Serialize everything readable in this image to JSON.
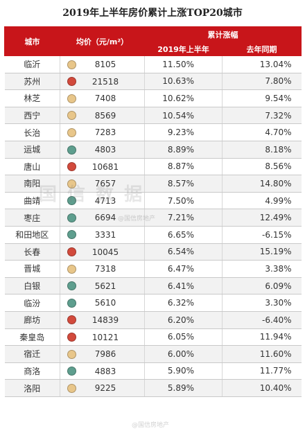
{
  "title": "2019年上半年房价累计上涨TOP20城市",
  "header": {
    "city": "城市",
    "price": "均价（元/m²）",
    "growth": "累计涨幅",
    "h1_2019": "2019年上半年",
    "last_year": "去年同期"
  },
  "watermark": "国 信 数 据",
  "watermark_small_1": "@国信房地产",
  "watermark_small_2": "@国信房地产",
  "colors": {
    "header": "#c8151a",
    "tan": "#e8c68a",
    "red": "#d24a3c",
    "teal": "#5e9e8e"
  },
  "rows": [
    {
      "city": "临沂",
      "color": "#e8c68a",
      "price": "8105",
      "h1": "11.50%",
      "last": "13.04%"
    },
    {
      "city": "苏州",
      "color": "#d24a3c",
      "price": "21518",
      "h1": "10.63%",
      "last": "7.80%"
    },
    {
      "city": "林芝",
      "color": "#e8c68a",
      "price": "7408",
      "h1": "10.62%",
      "last": "9.54%"
    },
    {
      "city": "西宁",
      "color": "#e8c68a",
      "price": "8569",
      "h1": "10.54%",
      "last": "7.32%"
    },
    {
      "city": "长治",
      "color": "#e8c68a",
      "price": "7283",
      "h1": "9.23%",
      "last": "4.70%"
    },
    {
      "city": "运城",
      "color": "#5e9e8e",
      "price": "4803",
      "h1": "8.89%",
      "last": "8.18%"
    },
    {
      "city": "唐山",
      "color": "#d24a3c",
      "price": "10681",
      "h1": "8.87%",
      "last": "8.56%"
    },
    {
      "city": "南阳",
      "color": "#e8c68a",
      "price": "7657",
      "h1": "8.57%",
      "last": "14.80%"
    },
    {
      "city": "曲靖",
      "color": "#5e9e8e",
      "price": "4713",
      "h1": "7.50%",
      "last": "4.99%"
    },
    {
      "city": "枣庄",
      "color": "#5e9e8e",
      "price": "6694",
      "h1": "7.21%",
      "last": "12.49%"
    },
    {
      "city": "和田地区",
      "color": "#5e9e8e",
      "price": "3331",
      "h1": "6.65%",
      "last": "-6.15%"
    },
    {
      "city": "长春",
      "color": "#d24a3c",
      "price": "10045",
      "h1": "6.54%",
      "last": "15.19%"
    },
    {
      "city": "晋城",
      "color": "#e8c68a",
      "price": "7318",
      "h1": "6.47%",
      "last": "3.38%"
    },
    {
      "city": "白银",
      "color": "#5e9e8e",
      "price": "5621",
      "h1": "6.41%",
      "last": "6.09%"
    },
    {
      "city": "临汾",
      "color": "#5e9e8e",
      "price": "5610",
      "h1": "6.32%",
      "last": "3.30%"
    },
    {
      "city": "廊坊",
      "color": "#d24a3c",
      "price": "14839",
      "h1": "6.20%",
      "last": "-6.40%"
    },
    {
      "city": "秦皇岛",
      "color": "#d24a3c",
      "price": "10121",
      "h1": "6.05%",
      "last": "11.94%"
    },
    {
      "city": "宿迁",
      "color": "#e8c68a",
      "price": "7986",
      "h1": "6.00%",
      "last": "11.60%"
    },
    {
      "city": "商洛",
      "color": "#5e9e8e",
      "price": "4883",
      "h1": "5.90%",
      "last": "11.77%"
    },
    {
      "city": "洛阳",
      "color": "#e8c68a",
      "price": "9225",
      "h1": "5.89%",
      "last": "10.40%"
    }
  ]
}
